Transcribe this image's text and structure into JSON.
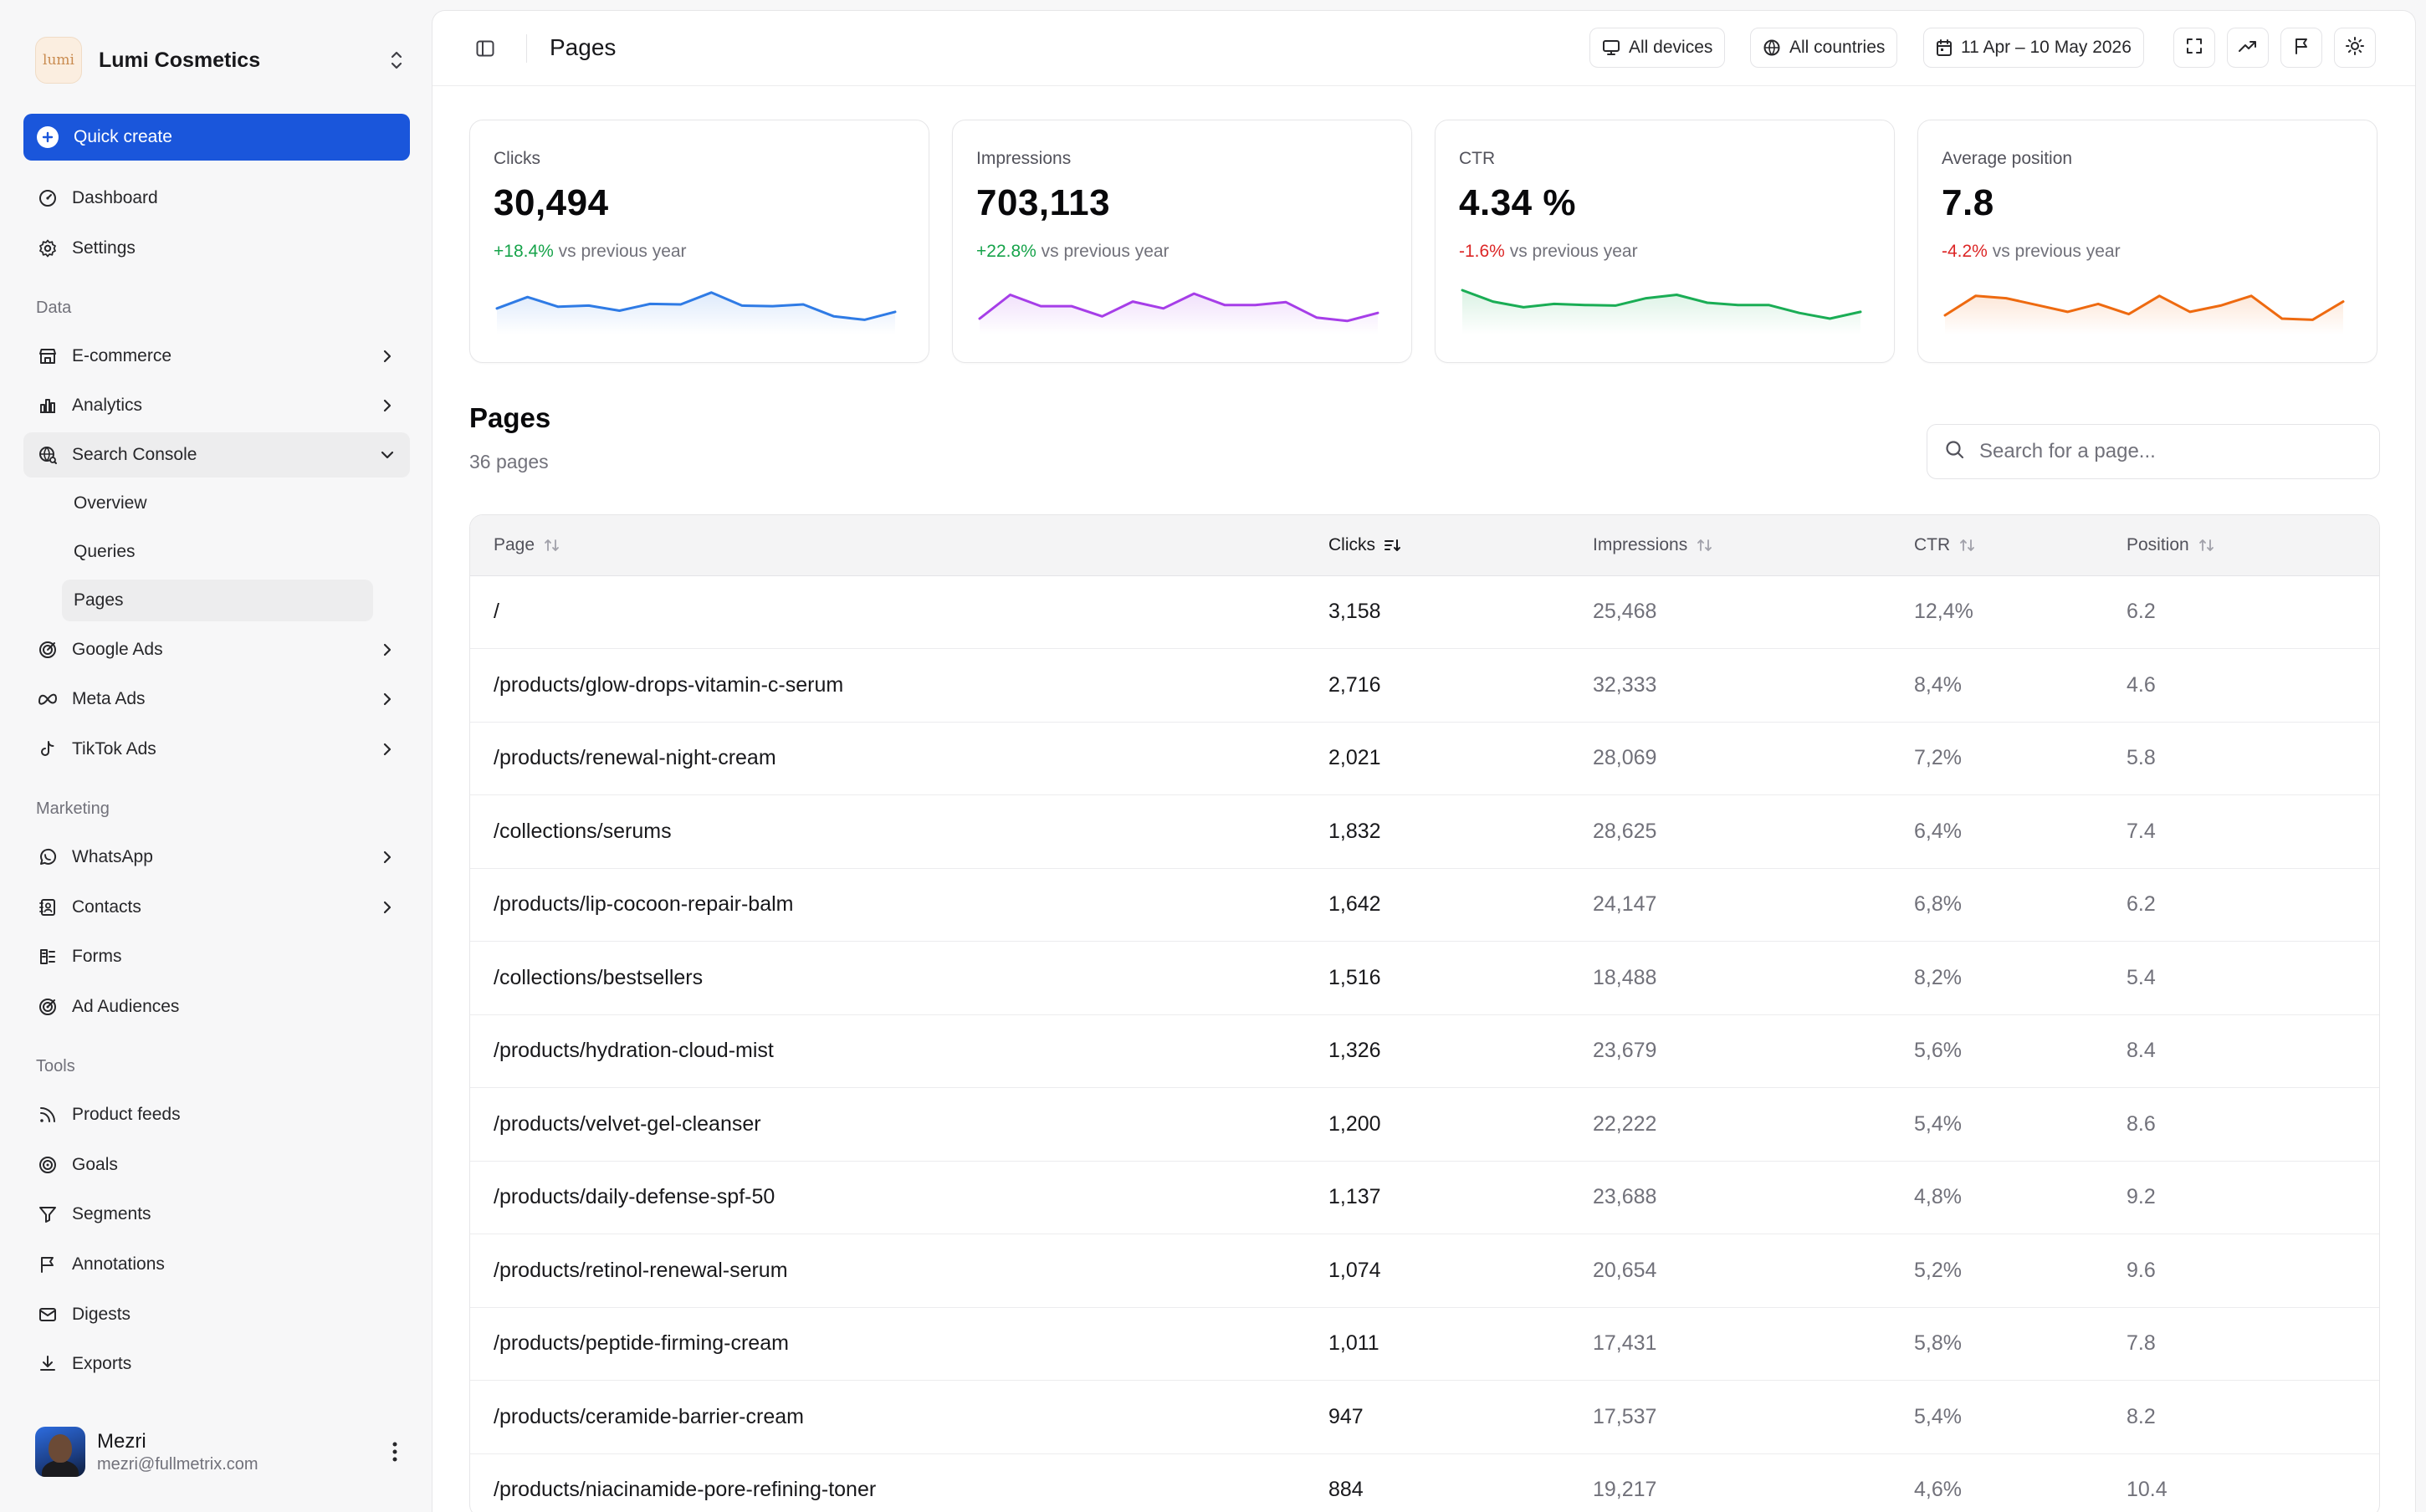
{
  "brand": {
    "name": "Lumi Cosmetics",
    "logo_text": "lumi"
  },
  "quick_create": {
    "label": "Quick create"
  },
  "nav_top": [
    {
      "label": "Dashboard",
      "icon": "dashboard-icon"
    },
    {
      "label": "Settings",
      "icon": "gear-icon"
    }
  ],
  "sections": {
    "data": "Data",
    "marketing": "Marketing",
    "tools": "Tools"
  },
  "nav_data": [
    {
      "label": "E-commerce",
      "icon": "store-icon"
    },
    {
      "label": "Analytics",
      "icon": "bar-chart-icon"
    },
    {
      "label": "Search Console",
      "icon": "globe-search-icon"
    }
  ],
  "search_console_children": [
    "Overview",
    "Queries",
    "Pages"
  ],
  "nav_ads": [
    {
      "label": "Google Ads",
      "icon": "google-ads-icon"
    },
    {
      "label": "Meta Ads",
      "icon": "meta-icon"
    },
    {
      "label": "TikTok Ads",
      "icon": "tiktok-icon"
    }
  ],
  "nav_marketing": [
    {
      "label": "WhatsApp",
      "icon": "whatsapp-icon"
    },
    {
      "label": "Contacts",
      "icon": "contacts-icon"
    },
    {
      "label": "Forms",
      "icon": "form-icon"
    },
    {
      "label": "Ad Audiences",
      "icon": "target-icon"
    }
  ],
  "nav_tools": [
    {
      "label": "Product feeds",
      "icon": "rss-icon"
    },
    {
      "label": "Goals",
      "icon": "goal-icon"
    },
    {
      "label": "Segments",
      "icon": "filter-icon"
    },
    {
      "label": "Annotations",
      "icon": "flag-icon"
    },
    {
      "label": "Digests",
      "icon": "mail-icon"
    },
    {
      "label": "Exports",
      "icon": "download-icon"
    }
  ],
  "user": {
    "name": "Mezri",
    "email": "mezri@fullmetrix.com"
  },
  "header": {
    "title": "Pages",
    "devices": "All devices",
    "countries": "All countries",
    "date_range": "11 Apr – 10 May 2026"
  },
  "kpis": [
    {
      "label": "Clicks",
      "value": "30,494",
      "delta": "+18.4%",
      "delta_text": "vs previous year",
      "trend": "up",
      "color": "#2f7be5",
      "spark": [
        40,
        60,
        43,
        45,
        36,
        48,
        47,
        68,
        45,
        44,
        47,
        26,
        20,
        34
      ]
    },
    {
      "label": "Impressions",
      "value": "703,113",
      "delta": "+22.8%",
      "delta_text": "vs previous year",
      "trend": "up",
      "color": "#a63ee8",
      "spark": [
        22,
        64,
        44,
        44,
        26,
        52,
        40,
        66,
        46,
        46,
        51,
        24,
        18,
        32
      ]
    },
    {
      "label": "CTR",
      "value": "4.34 %",
      "delta": "-1.6%",
      "delta_text": "vs previous year",
      "trend": "down",
      "color": "#1aad55",
      "spark": [
        72,
        52,
        42,
        48,
        46,
        45,
        58,
        64,
        50,
        46,
        46,
        32,
        22,
        34
      ]
    },
    {
      "label": "Average position",
      "value": "7.8",
      "delta": "-4.2%",
      "delta_text": "vs previous year",
      "trend": "down",
      "color": "#ee6a10",
      "spark": [
        28,
        62,
        58,
        46,
        34,
        48,
        30,
        62,
        34,
        45,
        62,
        22,
        20,
        52
      ]
    }
  ],
  "pages_section": {
    "title": "Pages",
    "count": "36 pages",
    "search_placeholder": "Search for a page..."
  },
  "table": {
    "columns": [
      "Page",
      "Clicks",
      "Impressions",
      "CTR",
      "Position"
    ],
    "sorted_column": "Clicks",
    "rows": [
      [
        "/",
        "3,158",
        "25,468",
        "12,4%",
        "6.2"
      ],
      [
        "/products/glow-drops-vitamin-c-serum",
        "2,716",
        "32,333",
        "8,4%",
        "4.6"
      ],
      [
        "/products/renewal-night-cream",
        "2,021",
        "28,069",
        "7,2%",
        "5.8"
      ],
      [
        "/collections/serums",
        "1,832",
        "28,625",
        "6,4%",
        "7.4"
      ],
      [
        "/products/lip-cocoon-repair-balm",
        "1,642",
        "24,147",
        "6,8%",
        "6.2"
      ],
      [
        "/collections/bestsellers",
        "1,516",
        "18,488",
        "8,2%",
        "5.4"
      ],
      [
        "/products/hydration-cloud-mist",
        "1,326",
        "23,679",
        "5,6%",
        "8.4"
      ],
      [
        "/products/velvet-gel-cleanser",
        "1,200",
        "22,222",
        "5,4%",
        "8.6"
      ],
      [
        "/products/daily-defense-spf-50",
        "1,137",
        "23,688",
        "4,8%",
        "9.2"
      ],
      [
        "/products/retinol-renewal-serum",
        "1,074",
        "20,654",
        "5,2%",
        "9.6"
      ],
      [
        "/products/peptide-firming-cream",
        "1,011",
        "17,431",
        "5,8%",
        "7.8"
      ],
      [
        "/products/ceramide-barrier-cream",
        "947",
        "17,537",
        "5,4%",
        "8.2"
      ],
      [
        "/products/niacinamide-pore-refining-toner",
        "884",
        "19,217",
        "4,6%",
        "10.4"
      ]
    ]
  }
}
